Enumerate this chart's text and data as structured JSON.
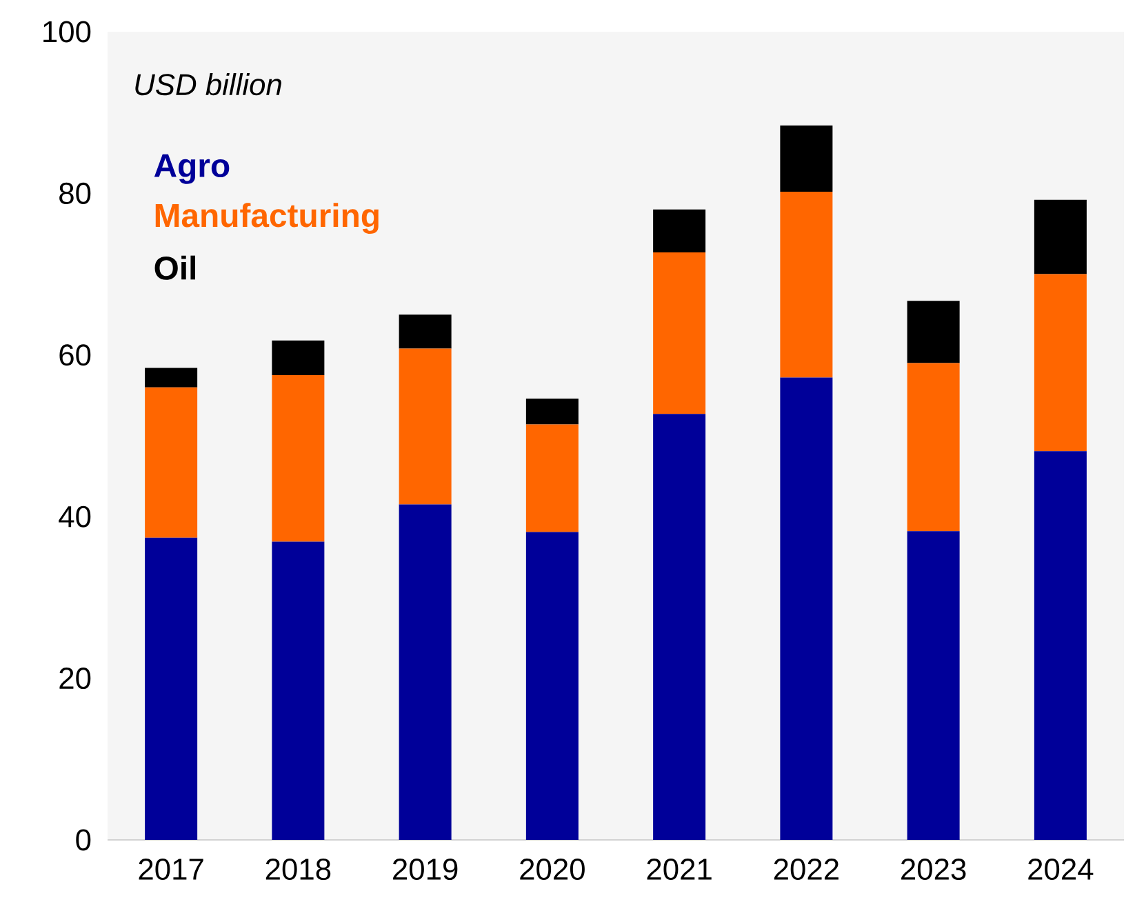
{
  "chart_data": {
    "type": "bar",
    "stacked": true,
    "ylabel": "USD billion",
    "categories": [
      "2017",
      "2018",
      "2019",
      "2020",
      "2021",
      "2022",
      "2023",
      "2024"
    ],
    "series": [
      {
        "name": "Agro",
        "color": "#000099",
        "values": [
          37.4,
          36.9,
          41.5,
          38.1,
          52.7,
          57.2,
          38.2,
          48.1
        ]
      },
      {
        "name": "Manufacturing",
        "color": "#ff6600",
        "values": [
          18.6,
          20.6,
          19.3,
          13.3,
          20.0,
          23.0,
          20.8,
          21.9
        ]
      },
      {
        "name": "Oil",
        "color": "#000000",
        "values": [
          2.4,
          4.3,
          4.2,
          3.2,
          5.3,
          8.2,
          7.7,
          9.2
        ]
      }
    ],
    "ylim": [
      0,
      100
    ],
    "yticks": [
      0,
      20,
      40,
      60,
      80,
      100
    ],
    "legend": "top left"
  }
}
